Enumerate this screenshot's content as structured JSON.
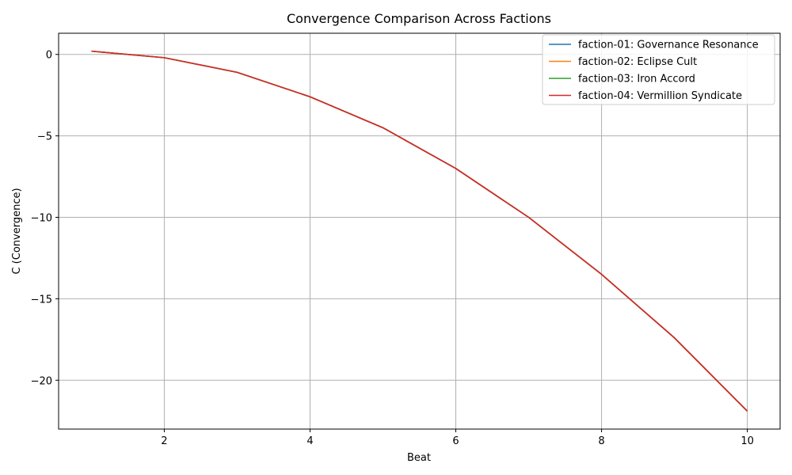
{
  "chart_data": {
    "type": "line",
    "title": "Convergence Comparison Across Factions",
    "xlabel": "Beat",
    "ylabel": "C (Convergence)",
    "xlim": [
      0.55,
      10.45
    ],
    "ylim": [
      -23.0,
      1.3
    ],
    "xticks": [
      2,
      4,
      6,
      8,
      10
    ],
    "yticks": [
      0,
      -5,
      -10,
      -15,
      -20
    ],
    "ytick_labels": [
      "0",
      "−5",
      "−10",
      "−15",
      "−20"
    ],
    "grid": true,
    "legend_position": "top-right",
    "x": [
      1,
      2,
      3,
      4,
      5,
      6,
      7,
      8,
      9,
      10
    ],
    "series": [
      {
        "name": "faction-01: Governance Resonance",
        "color": "#1f77b4",
        "values": [
          0.2,
          -0.2,
          -1.1,
          -2.6,
          -4.5,
          -7.0,
          -10.0,
          -13.5,
          -17.4,
          -21.9
        ]
      },
      {
        "name": "faction-02: Eclipse Cult",
        "color": "#ff7f0e",
        "values": [
          0.2,
          -0.2,
          -1.1,
          -2.6,
          -4.5,
          -7.0,
          -10.0,
          -13.5,
          -17.4,
          -21.9
        ]
      },
      {
        "name": "faction-03: Iron Accord",
        "color": "#2ca02c",
        "values": [
          0.2,
          -0.2,
          -1.1,
          -2.6,
          -4.5,
          -7.0,
          -10.0,
          -13.5,
          -17.4,
          -21.9
        ]
      },
      {
        "name": "faction-04: Vermillion Syndicate",
        "color": "#d62728",
        "values": [
          0.2,
          -0.2,
          -1.1,
          -2.6,
          -4.5,
          -7.0,
          -10.0,
          -13.5,
          -17.4,
          -21.9
        ]
      }
    ]
  }
}
